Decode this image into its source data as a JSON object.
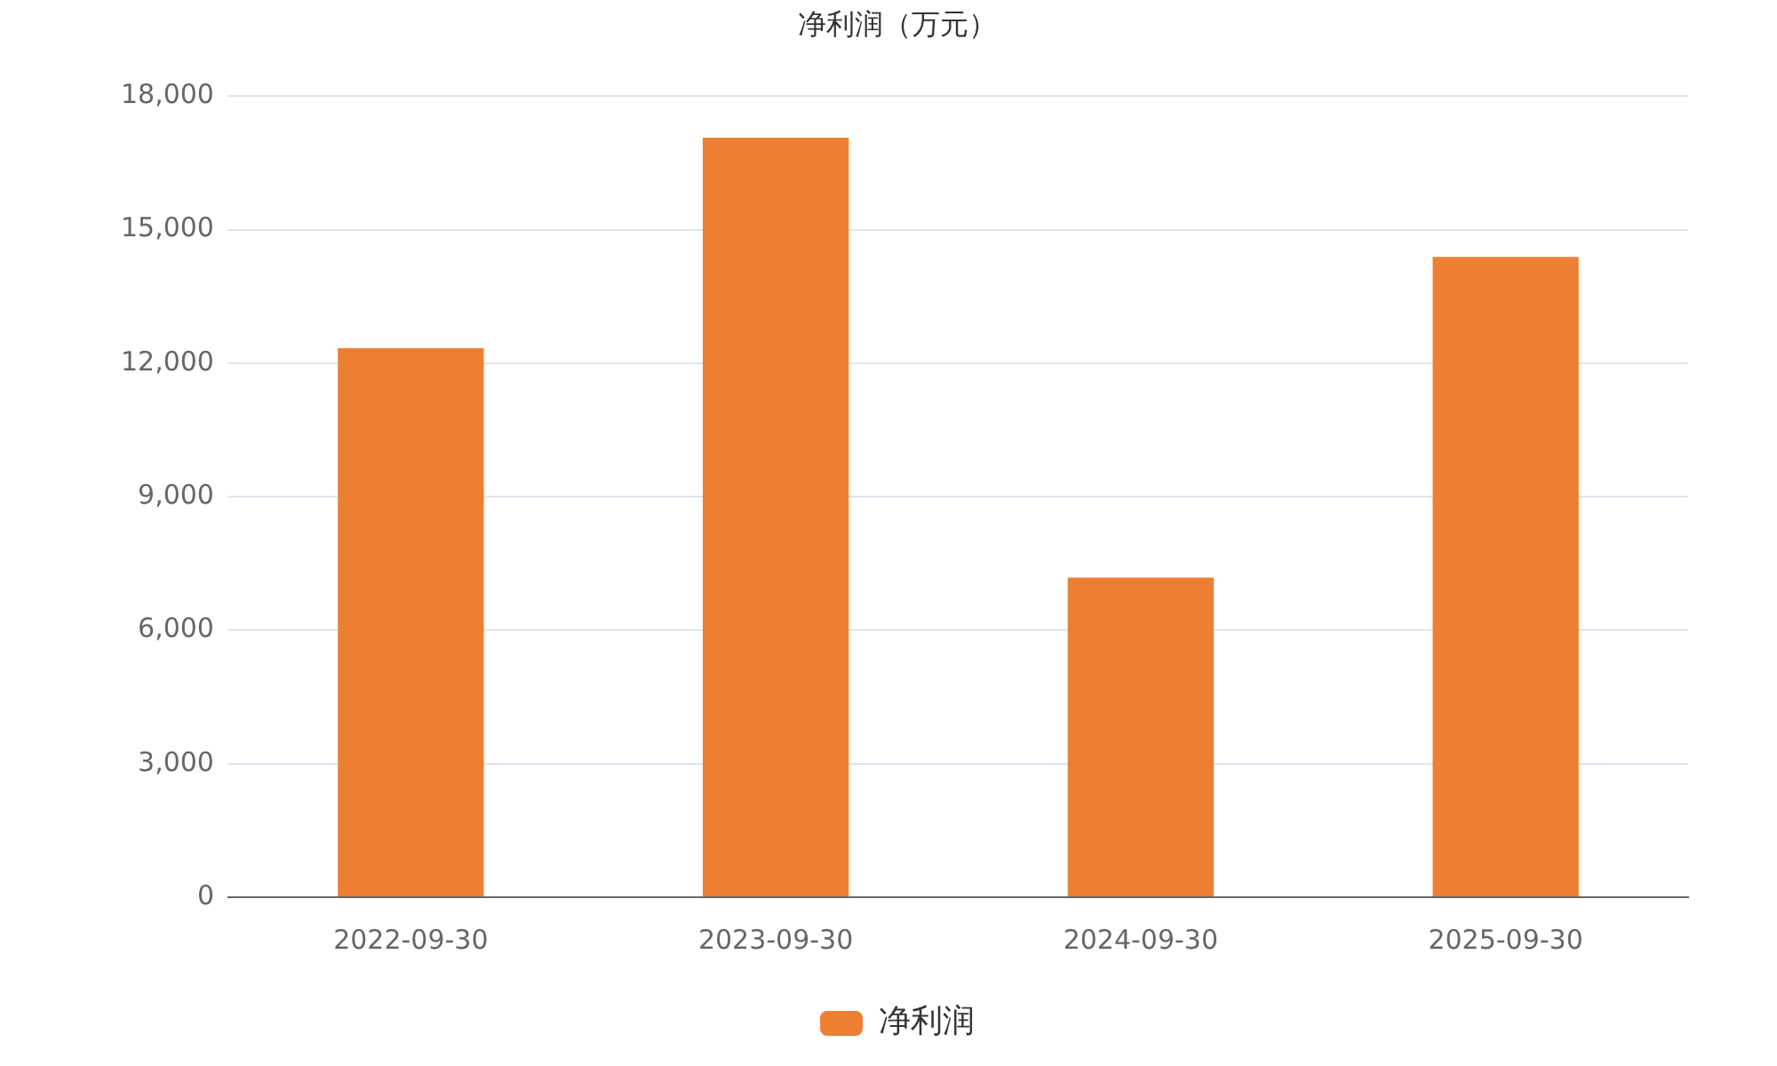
{
  "chart_data": {
    "type": "bar",
    "title": "净利润（万元）",
    "categories": [
      "2022-09-30",
      "2023-09-30",
      "2024-09-30",
      "2025-09-30"
    ],
    "series": [
      {
        "name": "净利润",
        "color": "#ed7f33",
        "values": [
          12340,
          17070,
          7180,
          14390
        ]
      }
    ],
    "ylim": [
      0,
      18000
    ],
    "yticks": [
      {
        "value": 0,
        "label": "0"
      },
      {
        "value": 3000,
        "label": "3,000"
      },
      {
        "value": 6000,
        "label": "6,000"
      },
      {
        "value": 9000,
        "label": "9,000"
      },
      {
        "value": 12000,
        "label": "12,000"
      },
      {
        "value": 15000,
        "label": "15,000"
      },
      {
        "value": 18000,
        "label": "18,000"
      }
    ],
    "grid": "y",
    "legend": "bottom"
  }
}
